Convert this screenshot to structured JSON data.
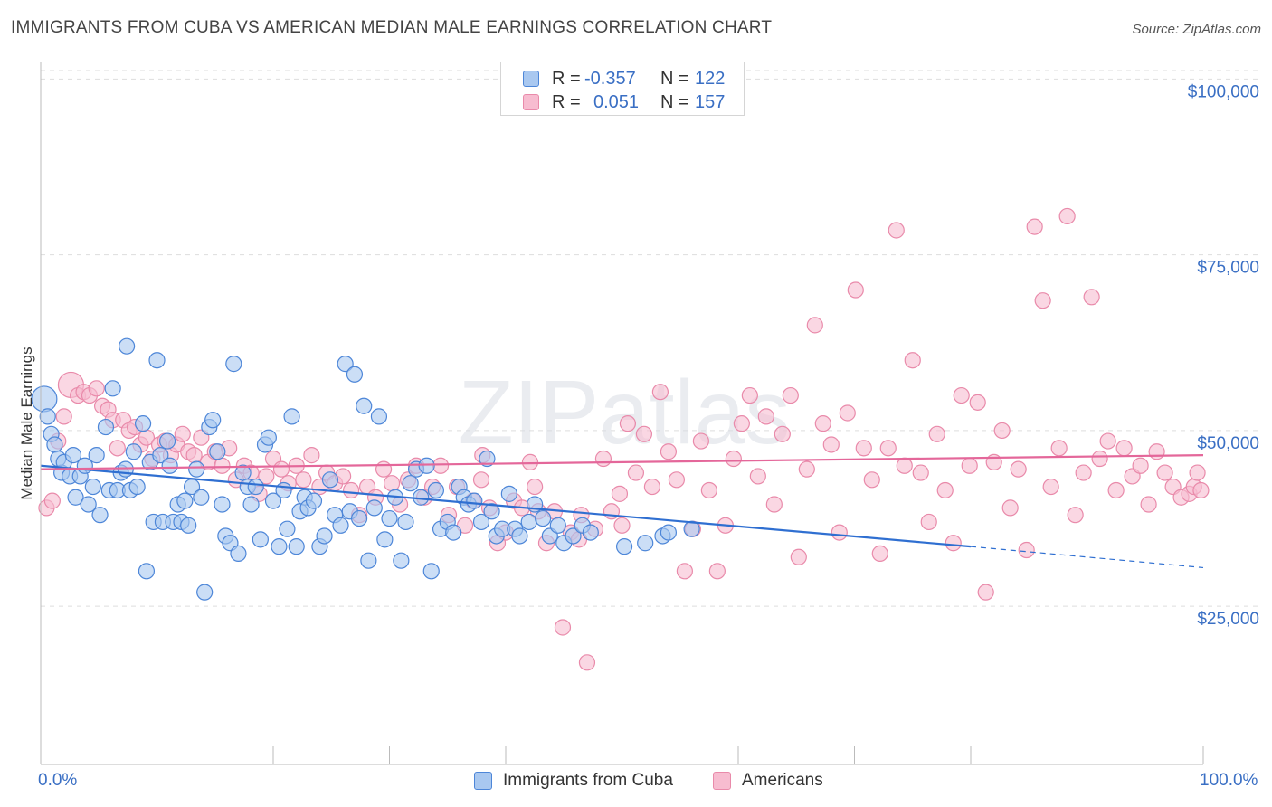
{
  "title": "IMMIGRANTS FROM CUBA VS AMERICAN MEDIAN MALE EARNINGS CORRELATION CHART",
  "source": "Source: ZipAtlas.com",
  "watermark": "ZIPatlas",
  "colors": {
    "blue_fill": "#a9c8f0",
    "blue_stroke": "#4d86d8",
    "blue_line": "#2f6fd1",
    "pink_fill": "#f7bcd0",
    "pink_stroke": "#e98aaa",
    "pink_line": "#e4679a",
    "axis_text": "#3a6fc4",
    "grid": "#dddddd"
  },
  "legend": {
    "rows": [
      {
        "r_label": "R =",
        "r_value": "-0.357",
        "n_label": "N =",
        "n_value": "122"
      },
      {
        "r_label": "R =",
        "r_value": "0.051",
        "n_label": "N =",
        "n_value": "157"
      }
    ]
  },
  "bottom_legend": [
    "Immigrants from Cuba",
    "Americans"
  ],
  "x_axis": {
    "min_label": "0.0%",
    "max_label": "100.0%"
  },
  "chart_data": {
    "type": "scatter",
    "title": "IMMIGRANTS FROM CUBA VS AMERICAN MEDIAN MALE EARNINGS CORRELATION CHART",
    "xlabel": "",
    "ylabel": "Median Male Earnings",
    "xlim": [
      0,
      100
    ],
    "ylim": [
      2500,
      102500
    ],
    "yticks": [
      25000,
      50000,
      75000,
      100000
    ],
    "ytick_labels": [
      "$25,000",
      "$50,000",
      "$75,000",
      "$100,000"
    ],
    "series": [
      {
        "name": "Immigrants from Cuba",
        "r": -0.357,
        "n": 122,
        "trend": {
          "x0": 0,
          "y0": 45000,
          "x1": 80,
          "y1": 33500,
          "dash_to_x": 100,
          "dash_to_y": 30500
        },
        "points": [
          [
            0.3,
            54500
          ],
          [
            0.6,
            52000
          ],
          [
            0.9,
            49500
          ],
          [
            1.2,
            48000
          ],
          [
            1.5,
            46000
          ],
          [
            1.8,
            44000
          ],
          [
            2.0,
            45500
          ],
          [
            2.5,
            43500
          ],
          [
            2.8,
            46500
          ],
          [
            3.0,
            40500
          ],
          [
            3.4,
            43500
          ],
          [
            3.8,
            45000
          ],
          [
            4.1,
            39500
          ],
          [
            4.5,
            42000
          ],
          [
            4.8,
            46500
          ],
          [
            5.1,
            38000
          ],
          [
            5.6,
            50500
          ],
          [
            5.9,
            41500
          ],
          [
            6.2,
            56000
          ],
          [
            6.6,
            41500
          ],
          [
            6.9,
            44000
          ],
          [
            7.3,
            44500
          ],
          [
            7.4,
            62000
          ],
          [
            7.7,
            41500
          ],
          [
            8.0,
            47000
          ],
          [
            8.3,
            42000
          ],
          [
            8.8,
            51000
          ],
          [
            9.1,
            30000
          ],
          [
            9.4,
            45500
          ],
          [
            9.7,
            37000
          ],
          [
            10.0,
            60000
          ],
          [
            10.3,
            46500
          ],
          [
            10.5,
            37000
          ],
          [
            10.9,
            48500
          ],
          [
            11.1,
            45000
          ],
          [
            11.4,
            37000
          ],
          [
            11.8,
            39500
          ],
          [
            12.1,
            37000
          ],
          [
            12.4,
            40000
          ],
          [
            12.7,
            36500
          ],
          [
            13.0,
            42000
          ],
          [
            13.4,
            44500
          ],
          [
            13.8,
            40500
          ],
          [
            14.1,
            27000
          ],
          [
            14.5,
            50500
          ],
          [
            14.8,
            51500
          ],
          [
            15.2,
            47000
          ],
          [
            15.6,
            39500
          ],
          [
            15.9,
            35000
          ],
          [
            16.3,
            34000
          ],
          [
            16.6,
            59500
          ],
          [
            17.0,
            32500
          ],
          [
            17.4,
            44000
          ],
          [
            17.8,
            42000
          ],
          [
            18.1,
            39500
          ],
          [
            18.5,
            42000
          ],
          [
            18.9,
            34500
          ],
          [
            19.3,
            48000
          ],
          [
            19.6,
            49000
          ],
          [
            20.0,
            40000
          ],
          [
            20.5,
            33500
          ],
          [
            20.9,
            41500
          ],
          [
            21.2,
            36000
          ],
          [
            21.6,
            52000
          ],
          [
            22.0,
            33500
          ],
          [
            22.3,
            38500
          ],
          [
            22.7,
            40500
          ],
          [
            23.0,
            39000
          ],
          [
            23.5,
            40000
          ],
          [
            24.0,
            33500
          ],
          [
            24.4,
            35000
          ],
          [
            24.9,
            43000
          ],
          [
            25.3,
            38000
          ],
          [
            25.8,
            36500
          ],
          [
            26.2,
            59500
          ],
          [
            26.6,
            38500
          ],
          [
            27.0,
            58000
          ],
          [
            27.4,
            37500
          ],
          [
            27.8,
            53500
          ],
          [
            28.2,
            31500
          ],
          [
            28.7,
            39000
          ],
          [
            29.1,
            52000
          ],
          [
            29.6,
            34500
          ],
          [
            30.0,
            37500
          ],
          [
            30.5,
            40500
          ],
          [
            31.0,
            31500
          ],
          [
            31.4,
            37000
          ],
          [
            31.8,
            42500
          ],
          [
            32.3,
            44500
          ],
          [
            32.7,
            40500
          ],
          [
            33.2,
            45000
          ],
          [
            33.6,
            30000
          ],
          [
            34.0,
            41500
          ],
          [
            34.4,
            36000
          ],
          [
            35.0,
            37000
          ],
          [
            35.5,
            35500
          ],
          [
            36.0,
            42000
          ],
          [
            36.4,
            40500
          ],
          [
            36.8,
            39500
          ],
          [
            37.3,
            40000
          ],
          [
            37.9,
            37000
          ],
          [
            38.4,
            46000
          ],
          [
            38.8,
            38500
          ],
          [
            39.2,
            35000
          ],
          [
            39.7,
            36000
          ],
          [
            40.3,
            41000
          ],
          [
            40.8,
            36000
          ],
          [
            41.2,
            35000
          ],
          [
            42.0,
            37000
          ],
          [
            42.5,
            39500
          ],
          [
            43.2,
            37500
          ],
          [
            43.8,
            35000
          ],
          [
            44.5,
            36500
          ],
          [
            45.0,
            34000
          ],
          [
            45.8,
            35000
          ],
          [
            46.6,
            36500
          ],
          [
            47.3,
            35500
          ],
          [
            50.2,
            33500
          ],
          [
            52.0,
            34000
          ],
          [
            53.5,
            35000
          ],
          [
            54.0,
            35500
          ],
          [
            56.0,
            36000
          ]
        ]
      },
      {
        "name": "Americans",
        "r": 0.051,
        "n": 157,
        "trend": {
          "x0": 0,
          "y0": 44500,
          "x1": 100,
          "y1": 46500
        },
        "points": [
          [
            0.5,
            39000
          ],
          [
            1.0,
            40000
          ],
          [
            1.5,
            48500
          ],
          [
            2.0,
            52000
          ],
          [
            2.6,
            56500
          ],
          [
            3.2,
            55000
          ],
          [
            3.7,
            55500
          ],
          [
            4.2,
            55000
          ],
          [
            4.8,
            56000
          ],
          [
            5.3,
            53500
          ],
          [
            5.8,
            53000
          ],
          [
            6.2,
            51500
          ],
          [
            6.6,
            47500
          ],
          [
            7.1,
            51500
          ],
          [
            7.6,
            50000
          ],
          [
            8.1,
            50500
          ],
          [
            8.6,
            48000
          ],
          [
            9.1,
            49000
          ],
          [
            9.6,
            46000
          ],
          [
            10.2,
            48000
          ],
          [
            10.7,
            48500
          ],
          [
            11.2,
            46500
          ],
          [
            11.7,
            48000
          ],
          [
            12.2,
            49500
          ],
          [
            12.7,
            47000
          ],
          [
            13.2,
            46500
          ],
          [
            13.8,
            49000
          ],
          [
            14.4,
            45500
          ],
          [
            15.0,
            47000
          ],
          [
            15.6,
            45000
          ],
          [
            16.2,
            47500
          ],
          [
            16.8,
            43000
          ],
          [
            17.5,
            45000
          ],
          [
            18.1,
            44000
          ],
          [
            18.8,
            41000
          ],
          [
            19.4,
            43500
          ],
          [
            20.0,
            46000
          ],
          [
            20.7,
            44500
          ],
          [
            21.3,
            42500
          ],
          [
            22.0,
            45000
          ],
          [
            22.6,
            43000
          ],
          [
            23.3,
            46500
          ],
          [
            24.0,
            42000
          ],
          [
            24.6,
            44000
          ],
          [
            25.3,
            42500
          ],
          [
            26.0,
            43500
          ],
          [
            26.7,
            41500
          ],
          [
            27.4,
            38000
          ],
          [
            28.1,
            42000
          ],
          [
            28.8,
            40500
          ],
          [
            29.5,
            44500
          ],
          [
            30.2,
            42500
          ],
          [
            30.9,
            39500
          ],
          [
            31.6,
            43000
          ],
          [
            32.3,
            45000
          ],
          [
            33.0,
            40500
          ],
          [
            33.7,
            42000
          ],
          [
            34.4,
            45000
          ],
          [
            35.1,
            38000
          ],
          [
            35.8,
            42000
          ],
          [
            36.5,
            36500
          ],
          [
            37.2,
            40000
          ],
          [
            37.9,
            43000
          ],
          [
            38.6,
            39000
          ],
          [
            39.3,
            34000
          ],
          [
            40.0,
            35500
          ],
          [
            40.7,
            40000
          ],
          [
            41.4,
            39000
          ],
          [
            42.1,
            45500
          ],
          [
            42.8,
            38500
          ],
          [
            43.5,
            34000
          ],
          [
            44.2,
            38500
          ],
          [
            44.9,
            22000
          ],
          [
            45.6,
            35500
          ],
          [
            46.3,
            34500
          ],
          [
            47.0,
            17000
          ],
          [
            47.7,
            36000
          ],
          [
            48.4,
            46000
          ],
          [
            49.1,
            38500
          ],
          [
            49.8,
            41000
          ],
          [
            50.5,
            51000
          ],
          [
            51.2,
            44000
          ],
          [
            51.9,
            49500
          ],
          [
            52.6,
            42000
          ],
          [
            53.3,
            55500
          ],
          [
            54.0,
            47000
          ],
          [
            54.7,
            43000
          ],
          [
            55.4,
            30000
          ],
          [
            56.1,
            36000
          ],
          [
            56.8,
            48500
          ],
          [
            57.5,
            41500
          ],
          [
            58.2,
            30000
          ],
          [
            58.9,
            36500
          ],
          [
            59.6,
            46000
          ],
          [
            60.3,
            51000
          ],
          [
            61.0,
            55000
          ],
          [
            61.7,
            43500
          ],
          [
            62.4,
            52000
          ],
          [
            63.1,
            39500
          ],
          [
            63.8,
            49500
          ],
          [
            64.5,
            55000
          ],
          [
            65.2,
            32000
          ],
          [
            65.9,
            44500
          ],
          [
            66.6,
            65000
          ],
          [
            67.3,
            51000
          ],
          [
            68.0,
            48000
          ],
          [
            68.7,
            35500
          ],
          [
            69.4,
            52500
          ],
          [
            70.1,
            70000
          ],
          [
            70.8,
            47500
          ],
          [
            71.5,
            43000
          ],
          [
            72.2,
            32500
          ],
          [
            72.9,
            47500
          ],
          [
            73.6,
            78500
          ],
          [
            74.3,
            45000
          ],
          [
            75.0,
            60000
          ],
          [
            75.7,
            44000
          ],
          [
            76.4,
            37000
          ],
          [
            77.1,
            49500
          ],
          [
            77.8,
            41500
          ],
          [
            78.5,
            34000
          ],
          [
            79.2,
            55000
          ],
          [
            79.9,
            45000
          ],
          [
            80.6,
            54000
          ],
          [
            81.3,
            27000
          ],
          [
            82.0,
            45500
          ],
          [
            82.7,
            50000
          ],
          [
            83.4,
            39000
          ],
          [
            84.1,
            44500
          ],
          [
            84.8,
            33000
          ],
          [
            85.5,
            79000
          ],
          [
            86.2,
            68500
          ],
          [
            86.9,
            42000
          ],
          [
            87.6,
            47500
          ],
          [
            88.3,
            80500
          ],
          [
            89.0,
            38000
          ],
          [
            89.7,
            44000
          ],
          [
            90.4,
            69000
          ],
          [
            91.1,
            46000
          ],
          [
            91.8,
            48500
          ],
          [
            92.5,
            41500
          ],
          [
            93.2,
            47500
          ],
          [
            93.9,
            43500
          ],
          [
            94.6,
            45000
          ],
          [
            95.3,
            39500
          ],
          [
            96.0,
            47000
          ],
          [
            96.7,
            44000
          ],
          [
            97.4,
            42000
          ],
          [
            98.1,
            40500
          ],
          [
            98.8,
            41000
          ],
          [
            99.2,
            42000
          ],
          [
            99.5,
            44000
          ],
          [
            99.8,
            41500
          ],
          [
            38.0,
            46500
          ],
          [
            42.5,
            42000
          ],
          [
            46.5,
            38000
          ],
          [
            50.0,
            36500
          ]
        ]
      }
    ]
  }
}
